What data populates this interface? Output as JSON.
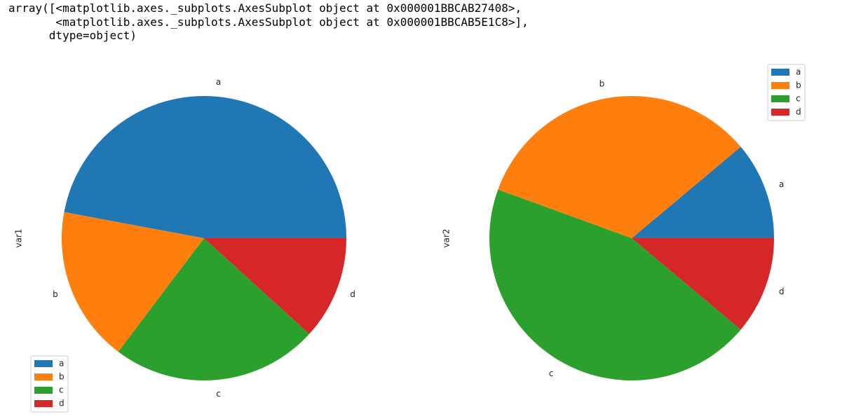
{
  "output_text": [
    "array([<matplotlib.axes._subplots.AxesSubplot object at 0x000001BBCAB27408>,",
    "       <matplotlib.axes._subplots.AxesSubplot object at 0x000001BBCAB5E1C8>],",
    "      dtype=object)"
  ],
  "chart_data": [
    {
      "type": "pie",
      "ylabel": "var1",
      "categories": [
        "a",
        "b",
        "c",
        "d"
      ],
      "values": [
        8,
        3,
        4,
        2
      ],
      "colors": [
        "#1f77b4",
        "#ff7f0e",
        "#2ca02c",
        "#d62728"
      ],
      "legend": "lower left"
    },
    {
      "type": "pie",
      "ylabel": "var2",
      "categories": [
        "a",
        "b",
        "c",
        "d"
      ],
      "values": [
        1,
        3,
        4,
        1
      ],
      "colors": [
        "#1f77b4",
        "#ff7f0e",
        "#2ca02c",
        "#d62728"
      ],
      "legend": "upper right"
    }
  ]
}
